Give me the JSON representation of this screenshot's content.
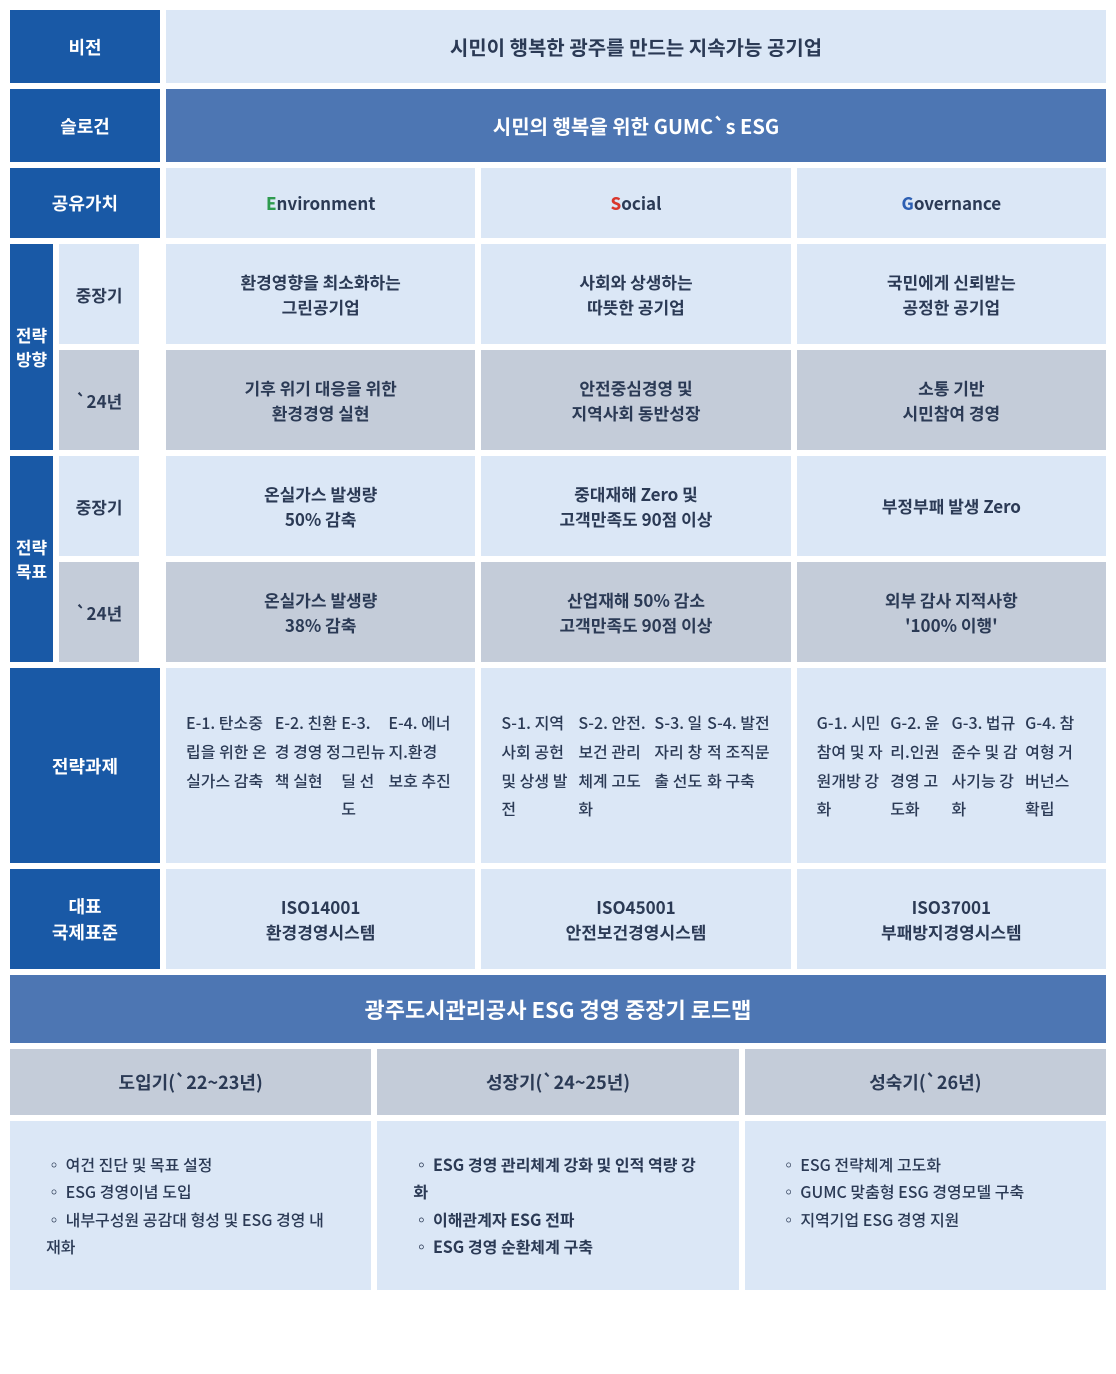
{
  "colors": {
    "brand_blue": "#1959a6",
    "mid_blue": "#4d76b3",
    "light_blue": "#dbe7f6",
    "grey_blue": "#c4ccd9",
    "text": "#2b3a55",
    "e_color": "#2e9b4f",
    "s_color": "#d9362c",
    "g_color": "#2c5fb3"
  },
  "labels": {
    "vision": "비전",
    "slogan": "슬로건",
    "shared_value": "공유가치",
    "strategy_direction": "전략\n방향",
    "strategy_goal": "전략\n목표",
    "longterm": "중장기",
    "y24": "`24년",
    "tasks": "전략과제",
    "standards": "대표\n국제표준"
  },
  "vision_text": "시민이 행복한 광주를 만드는 지속가능 공기업",
  "slogan_text": "시민의 행복을 위한 GUMC`s ESG",
  "esg": {
    "e": {
      "letter": "E",
      "rest": "nvironment"
    },
    "s": {
      "letter": "S",
      "rest": "ocial"
    },
    "g": {
      "letter": "G",
      "rest": "overnance"
    }
  },
  "direction": {
    "longterm": {
      "e": "환경영향을 최소화하는\n그린공기업",
      "s": "사회와 상생하는\n따뜻한 공기업",
      "g": "국민에게 신뢰받는\n공정한 공기업"
    },
    "y24": {
      "e": "기후 위기 대응을 위한\n환경경영 실현",
      "s": "안전중심경영 및\n지역사회 동반성장",
      "g": "소통 기반\n시민참여 경영"
    }
  },
  "goal": {
    "longterm": {
      "e": "온실가스 발생량\n50% 감축",
      "s": "중대재해 Zero 및\n고객만족도 90점 이상",
      "g": "부정부패 발생 Zero"
    },
    "y24": {
      "e": "온실가스 발생량\n38% 감축",
      "s": "산업재해 50% 감소\n고객만족도 90점 이상",
      "g": "외부 감사 지적사항\n'100% 이행'"
    }
  },
  "tasks": {
    "e": [
      "E-1. 탄소중립을 위한 온실가스 감축",
      "E-2. 친환경 경영 정책 실현",
      "E-3. 그린뉴딜 선도",
      "E-4. 에너지.환경 보호  추진"
    ],
    "s": [
      "S-1. 지역사회 공헌 및 상생 발전",
      "S-2. 안전.보건  관리체계 고도화",
      "S-3. 일자리 창출 선도",
      "S-4. 발전적 조직문화  구축"
    ],
    "g": [
      "G-1. 시민 참여 및 자원개방 강화",
      "G-2. 윤리.인권경영 고도화",
      "G-3. 법규 준수 및 감사기능 강화",
      "G-4. 참여형 거버넌스 확립"
    ]
  },
  "standards": {
    "e": "ISO14001\n환경경영시스템",
    "s": "ISO45001\n안전보건경영시스템",
    "g": "ISO37001\n부패방지경영시스템"
  },
  "roadmap": {
    "title": "광주도시관리공사 ESG 경영 중장기 로드맵",
    "phases": [
      {
        "title": "도입기(`22~23년)",
        "bold": false,
        "items": [
          "여건 진단 및 목표 설정",
          "ESG 경영이념 도입",
          "내부구성원 공감대 형성 및 ESG 경영 내재화"
        ]
      },
      {
        "title": "성장기(`24~25년)",
        "bold": true,
        "items": [
          "ESG 경영 관리체계 강화 및 인적 역량 강화",
          "이해관계자 ESG 전파",
          "ESG 경영 순환체계 구축"
        ]
      },
      {
        "title": "성숙기(`26년)",
        "bold": false,
        "items": [
          "ESG 전략체계 고도화",
          "GUMC 맞춤형 ESG 경영모델 구축",
          "지역기업 ESG 경영 지원"
        ]
      }
    ]
  }
}
